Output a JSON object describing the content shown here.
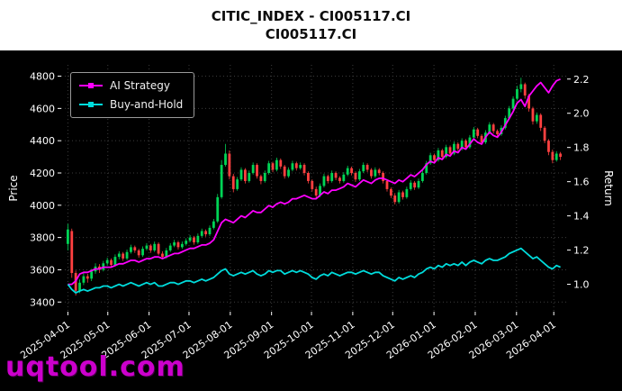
{
  "watermark": {
    "text": "uqtool.com",
    "color": "#cc00cc"
  },
  "chart_data": {
    "type": "candlestick",
    "title": "CITIC_INDEX - CI005117.CI",
    "subtitle": "CI005117.CI",
    "ylabel": "Price",
    "ylabel_right": "Return",
    "grid": true,
    "legend_position": "upper left",
    "x_tick_labels": [
      "2025-04-01",
      "2025-05-01",
      "2025-06-01",
      "2025-07-01",
      "2025-08-01",
      "2025-09-01",
      "2025-10-01",
      "2025-11-01",
      "2025-12-01",
      "2026-01-01",
      "2026-02-01",
      "2026-03-01",
      "2026-04-01"
    ],
    "x_tick_days": [
      0,
      30,
      61,
      91,
      122,
      153,
      183,
      214,
      244,
      275,
      306,
      337,
      365
    ],
    "x_domain_days": [
      -5,
      375
    ],
    "x_data_span_days": 370,
    "price_ticks": [
      3400,
      3600,
      3800,
      4000,
      4200,
      4400,
      4600,
      4800
    ],
    "price_domain": [
      3340,
      4870
    ],
    "return_ticks": [
      1.0,
      1.2,
      1.4,
      1.6,
      1.8,
      2.0,
      2.2
    ],
    "return_to_price": {
      "a": 2450,
      "b": 1060
    },
    "colors": {
      "up": "#00d455",
      "down": "#ff4040",
      "grid": "#3c3c3c",
      "tick_text": "#ffffff",
      "background": "#000000"
    },
    "candles": [
      [
        3760,
        3885,
        3720,
        3850
      ],
      [
        3840,
        3855,
        3550,
        3580
      ],
      [
        3580,
        3595,
        3440,
        3470
      ],
      [
        3470,
        3540,
        3455,
        3520
      ],
      [
        3520,
        3580,
        3505,
        3560
      ],
      [
        3560,
        3575,
        3520,
        3545
      ],
      [
        3545,
        3605,
        3530,
        3590
      ],
      [
        3590,
        3640,
        3575,
        3620
      ],
      [
        3620,
        3635,
        3580,
        3600
      ],
      [
        3600,
        3655,
        3590,
        3640
      ],
      [
        3640,
        3675,
        3625,
        3660
      ],
      [
        3660,
        3670,
        3615,
        3630
      ],
      [
        3630,
        3695,
        3620,
        3680
      ],
      [
        3680,
        3715,
        3665,
        3700
      ],
      [
        3700,
        3710,
        3655,
        3670
      ],
      [
        3670,
        3725,
        3660,
        3710
      ],
      [
        3710,
        3755,
        3700,
        3740
      ],
      [
        3740,
        3750,
        3705,
        3720
      ],
      [
        3720,
        3730,
        3675,
        3690
      ],
      [
        3690,
        3745,
        3680,
        3730
      ],
      [
        3730,
        3765,
        3720,
        3750
      ],
      [
        3750,
        3760,
        3705,
        3720
      ],
      [
        3720,
        3775,
        3710,
        3760
      ],
      [
        3760,
        3770,
        3690,
        3700
      ],
      [
        3700,
        3715,
        3665,
        3680
      ],
      [
        3680,
        3735,
        3670,
        3720
      ],
      [
        3720,
        3765,
        3710,
        3750
      ],
      [
        3750,
        3785,
        3740,
        3770
      ],
      [
        3770,
        3780,
        3725,
        3740
      ],
      [
        3740,
        3775,
        3730,
        3760
      ],
      [
        3760,
        3795,
        3750,
        3780
      ],
      [
        3780,
        3815,
        3770,
        3800
      ],
      [
        3800,
        3810,
        3755,
        3770
      ],
      [
        3770,
        3825,
        3760,
        3810
      ],
      [
        3810,
        3855,
        3800,
        3840
      ],
      [
        3840,
        3850,
        3805,
        3820
      ],
      [
        3820,
        3875,
        3810,
        3860
      ],
      [
        3860,
        3915,
        3850,
        3900
      ],
      [
        3900,
        4070,
        3890,
        4050
      ],
      [
        4050,
        4280,
        4040,
        4250
      ],
      [
        4250,
        4380,
        4240,
        4320
      ],
      [
        4320,
        4340,
        4160,
        4180
      ],
      [
        4180,
        4195,
        4080,
        4100
      ],
      [
        4100,
        4175,
        4090,
        4160
      ],
      [
        4160,
        4235,
        4150,
        4220
      ],
      [
        4220,
        4230,
        4135,
        4150
      ],
      [
        4150,
        4215,
        4140,
        4200
      ],
      [
        4200,
        4265,
        4190,
        4250
      ],
      [
        4250,
        4260,
        4165,
        4180
      ],
      [
        4180,
        4190,
        4130,
        4150
      ],
      [
        4150,
        4215,
        4140,
        4200
      ],
      [
        4200,
        4275,
        4190,
        4260
      ],
      [
        4260,
        4270,
        4205,
        4220
      ],
      [
        4220,
        4295,
        4210,
        4280
      ],
      [
        4280,
        4290,
        4225,
        4240
      ],
      [
        4240,
        4250,
        4165,
        4180
      ],
      [
        4180,
        4235,
        4170,
        4220
      ],
      [
        4220,
        4275,
        4210,
        4260
      ],
      [
        4260,
        4270,
        4215,
        4230
      ],
      [
        4230,
        4265,
        4220,
        4250
      ],
      [
        4250,
        4260,
        4185,
        4200
      ],
      [
        4200,
        4210,
        4135,
        4150
      ],
      [
        4150,
        4160,
        4085,
        4100
      ],
      [
        4100,
        4115,
        4045,
        4060
      ],
      [
        4060,
        4135,
        4050,
        4120
      ],
      [
        4120,
        4195,
        4110,
        4180
      ],
      [
        4180,
        4190,
        4135,
        4150
      ],
      [
        4150,
        4215,
        4140,
        4200
      ],
      [
        4200,
        4210,
        4155,
        4170
      ],
      [
        4170,
        4180,
        4135,
        4150
      ],
      [
        4150,
        4205,
        4140,
        4190
      ],
      [
        4190,
        4245,
        4180,
        4230
      ],
      [
        4230,
        4240,
        4185,
        4200
      ],
      [
        4200,
        4210,
        4145,
        4160
      ],
      [
        4160,
        4225,
        4150,
        4210
      ],
      [
        4210,
        4265,
        4200,
        4250
      ],
      [
        4250,
        4260,
        4205,
        4220
      ],
      [
        4220,
        4230,
        4165,
        4180
      ],
      [
        4180,
        4235,
        4170,
        4220
      ],
      [
        4220,
        4230,
        4185,
        4200
      ],
      [
        4200,
        4210,
        4135,
        4150
      ],
      [
        4150,
        4160,
        4085,
        4100
      ],
      [
        4100,
        4110,
        4045,
        4060
      ],
      [
        4060,
        4075,
        4005,
        4020
      ],
      [
        4020,
        4095,
        4010,
        4080
      ],
      [
        4080,
        4090,
        4035,
        4050
      ],
      [
        4050,
        4115,
        4040,
        4100
      ],
      [
        4100,
        4155,
        4090,
        4140
      ],
      [
        4140,
        4150,
        4095,
        4110
      ],
      [
        4110,
        4165,
        4100,
        4150
      ],
      [
        4150,
        4215,
        4140,
        4200
      ],
      [
        4200,
        4275,
        4190,
        4260
      ],
      [
        4260,
        4325,
        4250,
        4310
      ],
      [
        4310,
        4320,
        4265,
        4280
      ],
      [
        4280,
        4355,
        4270,
        4340
      ],
      [
        4340,
        4350,
        4285,
        4300
      ],
      [
        4300,
        4375,
        4290,
        4360
      ],
      [
        4360,
        4370,
        4305,
        4320
      ],
      [
        4320,
        4395,
        4310,
        4380
      ],
      [
        4380,
        4390,
        4335,
        4350
      ],
      [
        4350,
        4415,
        4340,
        4400
      ],
      [
        4400,
        4410,
        4345,
        4360
      ],
      [
        4360,
        4435,
        4350,
        4420
      ],
      [
        4420,
        4485,
        4410,
        4470
      ],
      [
        4470,
        4480,
        4415,
        4430
      ],
      [
        4430,
        4440,
        4375,
        4390
      ],
      [
        4390,
        4465,
        4380,
        4450
      ],
      [
        4450,
        4515,
        4440,
        4500
      ],
      [
        4500,
        4510,
        4445,
        4460
      ],
      [
        4460,
        4470,
        4425,
        4440
      ],
      [
        4440,
        4495,
        4430,
        4480
      ],
      [
        4480,
        4555,
        4470,
        4540
      ],
      [
        4540,
        4615,
        4530,
        4600
      ],
      [
        4600,
        4675,
        4590,
        4660
      ],
      [
        4660,
        4740,
        4650,
        4720
      ],
      [
        4720,
        4790,
        4700,
        4750
      ],
      [
        4750,
        4760,
        4660,
        4680
      ],
      [
        4680,
        4690,
        4580,
        4600
      ],
      [
        4600,
        4610,
        4500,
        4520
      ],
      [
        4520,
        4575,
        4505,
        4560
      ],
      [
        4560,
        4570,
        4460,
        4480
      ],
      [
        4480,
        4490,
        4385,
        4400
      ],
      [
        4400,
        4410,
        4310,
        4330
      ],
      [
        4330,
        4345,
        4260,
        4280
      ],
      [
        4280,
        4335,
        4270,
        4320
      ],
      [
        4320,
        4330,
        4280,
        4300
      ]
    ],
    "series": [
      {
        "name": "AI Strategy",
        "color": "#ff00ff",
        "axis": "return",
        "values": [
          1.0,
          1.0,
          1.02,
          1.06,
          1.07,
          1.07,
          1.08,
          1.09,
          1.09,
          1.1,
          1.1,
          1.1,
          1.11,
          1.12,
          1.12,
          1.13,
          1.14,
          1.14,
          1.13,
          1.14,
          1.15,
          1.15,
          1.16,
          1.16,
          1.15,
          1.16,
          1.17,
          1.18,
          1.18,
          1.19,
          1.2,
          1.21,
          1.21,
          1.22,
          1.23,
          1.23,
          1.24,
          1.26,
          1.31,
          1.36,
          1.38,
          1.37,
          1.36,
          1.38,
          1.4,
          1.39,
          1.41,
          1.43,
          1.42,
          1.42,
          1.44,
          1.46,
          1.45,
          1.47,
          1.48,
          1.47,
          1.48,
          1.5,
          1.5,
          1.51,
          1.52,
          1.51,
          1.5,
          1.5,
          1.52,
          1.54,
          1.53,
          1.55,
          1.55,
          1.56,
          1.57,
          1.59,
          1.58,
          1.57,
          1.59,
          1.61,
          1.6,
          1.59,
          1.61,
          1.62,
          1.62,
          1.61,
          1.6,
          1.59,
          1.61,
          1.6,
          1.62,
          1.64,
          1.63,
          1.65,
          1.67,
          1.7,
          1.72,
          1.71,
          1.74,
          1.73,
          1.76,
          1.75,
          1.78,
          1.77,
          1.8,
          1.79,
          1.82,
          1.85,
          1.83,
          1.82,
          1.86,
          1.89,
          1.87,
          1.86,
          1.89,
          1.93,
          1.97,
          2.01,
          2.06,
          2.08,
          2.04,
          2.1,
          2.13,
          2.16,
          2.18,
          2.15,
          2.12,
          2.16,
          2.19,
          2.2
        ]
      },
      {
        "name": "Buy-and-Hold",
        "color": "#00dcdc",
        "axis": "return",
        "values": [
          1.0,
          0.97,
          0.95,
          0.96,
          0.97,
          0.96,
          0.97,
          0.98,
          0.98,
          0.99,
          0.99,
          0.98,
          0.99,
          1.0,
          0.99,
          1.0,
          1.01,
          1.0,
          0.99,
          1.0,
          1.01,
          1.0,
          1.01,
          0.99,
          0.99,
          1.0,
          1.01,
          1.01,
          1.0,
          1.01,
          1.02,
          1.02,
          1.01,
          1.02,
          1.03,
          1.02,
          1.03,
          1.04,
          1.06,
          1.08,
          1.09,
          1.06,
          1.05,
          1.06,
          1.07,
          1.06,
          1.07,
          1.08,
          1.06,
          1.05,
          1.06,
          1.08,
          1.07,
          1.08,
          1.08,
          1.06,
          1.07,
          1.08,
          1.07,
          1.08,
          1.07,
          1.06,
          1.04,
          1.03,
          1.05,
          1.06,
          1.05,
          1.07,
          1.06,
          1.05,
          1.06,
          1.07,
          1.07,
          1.06,
          1.07,
          1.08,
          1.07,
          1.06,
          1.07,
          1.07,
          1.05,
          1.04,
          1.03,
          1.02,
          1.04,
          1.03,
          1.04,
          1.05,
          1.04,
          1.06,
          1.07,
          1.09,
          1.1,
          1.09,
          1.11,
          1.1,
          1.12,
          1.11,
          1.12,
          1.11,
          1.13,
          1.11,
          1.13,
          1.14,
          1.13,
          1.12,
          1.14,
          1.15,
          1.14,
          1.14,
          1.15,
          1.16,
          1.18,
          1.19,
          1.2,
          1.21,
          1.19,
          1.17,
          1.15,
          1.16,
          1.14,
          1.12,
          1.1,
          1.09,
          1.11,
          1.1
        ]
      }
    ]
  }
}
